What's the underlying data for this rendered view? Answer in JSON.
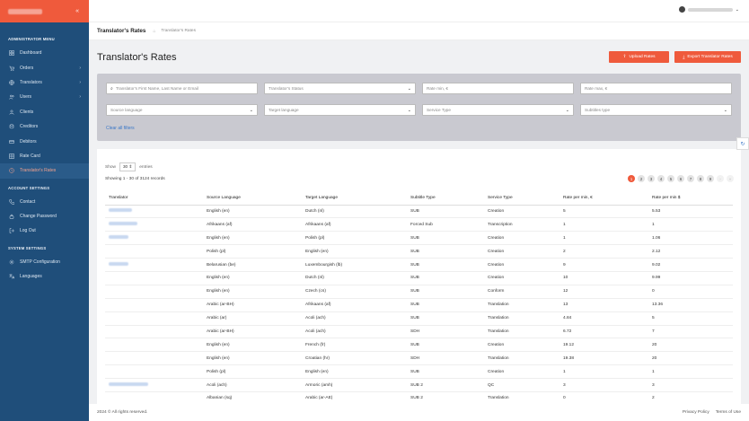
{
  "sidebar": {
    "sections": {
      "admin": "ADMINISTRATOR MENU",
      "account": "ACCOUNT SETTINGS",
      "system": "SYSTEM SETTINGS"
    },
    "admin_items": [
      {
        "label": "Dashboard",
        "icon": "dashboard-icon"
      },
      {
        "label": "Orders",
        "icon": "cart-icon",
        "caret": "›"
      },
      {
        "label": "Translators",
        "icon": "globe-icon",
        "caret": "›"
      },
      {
        "label": "Users",
        "icon": "users-icon",
        "caret": "›"
      },
      {
        "label": "Clients",
        "icon": "user-icon"
      },
      {
        "label": "Creditors",
        "icon": "coins-icon"
      },
      {
        "label": "Debitors",
        "icon": "card-icon"
      },
      {
        "label": "Rate Card",
        "icon": "grid-icon"
      },
      {
        "label": "Translator's Rates",
        "icon": "rate-icon",
        "active": true
      }
    ],
    "account_items": [
      {
        "label": "Contact",
        "icon": "phone-icon"
      },
      {
        "label": "Change Password",
        "icon": "lock-icon"
      },
      {
        "label": "Log Out",
        "icon": "logout-icon"
      }
    ],
    "system_items": [
      {
        "label": "SMTP Configuration",
        "icon": "gear-icon"
      },
      {
        "label": "Languages",
        "icon": "language-icon"
      }
    ]
  },
  "pagebar": {
    "title": "Translator's Rates",
    "breadcrumb": "Translator's Rates"
  },
  "main": {
    "title": "Translator's Rates",
    "upload_label": "Upload Rates",
    "export_label": "Export Translator Rates",
    "filters": {
      "search_placeholder": "Translator's First Name, Last Name or Email",
      "status": "Translator's Status",
      "rate_min": "Rate min, €",
      "rate_max": "Rate max, €",
      "source_language": "Source language",
      "target_language": "Target language",
      "service_type": "Service Type",
      "subtitles_type": "Subtitles type",
      "clear": "Clear all filters"
    },
    "show_label": "Show",
    "show_value": "30",
    "entries_label": "entries",
    "showing": "Showing 1 - 30 of 3124 records",
    "pages": [
      "1",
      "2",
      "3",
      "4",
      "5",
      "6",
      "7",
      "8",
      "9",
      "›",
      "»"
    ],
    "columns": [
      "Translator",
      "Source Language",
      "Target Language",
      "Subtitle Type",
      "Service Type",
      "Rate per min, €",
      "Rate per min $"
    ],
    "rows": [
      {
        "group": true,
        "blur": "w1",
        "src": "English (en)",
        "tgt": "Dutch (nl)",
        "sub": "SUB",
        "svc": "Creation",
        "eur": "5",
        "usd": "5.53"
      },
      {
        "group": true,
        "blur": "w2",
        "src": "Afrikaans (af)",
        "tgt": "Afrikaans (af)",
        "sub": "Forced Sub",
        "svc": "Transcription",
        "eur": "1",
        "usd": "1"
      },
      {
        "group": true,
        "blur": "w3",
        "src": "English (en)",
        "tgt": "Polish (pl)",
        "sub": "SUB",
        "svc": "Creation",
        "eur": "1",
        "usd": "1.06"
      },
      {
        "group": false,
        "blur": "",
        "src": "Polish (pl)",
        "tgt": "English (en)",
        "sub": "SUB",
        "svc": "Creation",
        "eur": "2",
        "usd": "2.12"
      },
      {
        "group": true,
        "blur": "w3",
        "src": "Belarusian (be)",
        "tgt": "Luxembourgish (lb)",
        "sub": "SUB",
        "svc": "Creation",
        "eur": "9",
        "usd": "9.02"
      },
      {
        "group": false,
        "blur": "",
        "src": "English (en)",
        "tgt": "Dutch (nl)",
        "sub": "SUB",
        "svc": "Creation",
        "eur": "10",
        "usd": "9.99"
      },
      {
        "group": false,
        "blur": "",
        "src": "English (en)",
        "tgt": "Czech (cs)",
        "sub": "SUB",
        "svc": "Conform",
        "eur": "12",
        "usd": "0"
      },
      {
        "group": false,
        "blur": "",
        "src": "Arabic (ar-BH)",
        "tgt": "Afrikaans (af)",
        "sub": "SUB",
        "svc": "Translation",
        "eur": "13",
        "usd": "13.36"
      },
      {
        "group": false,
        "blur": "",
        "src": "Arabic (ar)",
        "tgt": "Acoli (ach)",
        "sub": "SUB",
        "svc": "Translation",
        "eur": "4.84",
        "usd": "5"
      },
      {
        "group": false,
        "blur": "",
        "src": "Arabic (ar-BH)",
        "tgt": "Acoli (ach)",
        "sub": "SDH",
        "svc": "Translation",
        "eur": "6.72",
        "usd": "7"
      },
      {
        "group": false,
        "blur": "",
        "src": "English (en)",
        "tgt": "French (fr)",
        "sub": "SUB",
        "svc": "Creation",
        "eur": "19.12",
        "usd": "20"
      },
      {
        "group": false,
        "blur": "",
        "src": "English (en)",
        "tgt": "Croatian (hr)",
        "sub": "SDH",
        "svc": "Translation",
        "eur": "19.38",
        "usd": "20"
      },
      {
        "group": false,
        "blur": "",
        "src": "Polish (pl)",
        "tgt": "English (en)",
        "sub": "SUB",
        "svc": "Creation",
        "eur": "1",
        "usd": "1"
      },
      {
        "group": true,
        "blur": "w4",
        "src": "Acoli (ach)",
        "tgt": "Armoric (amh)",
        "sub": "SUB 2",
        "svc": "QC",
        "eur": "3",
        "usd": "3"
      },
      {
        "group": false,
        "blur": "",
        "src": "Albanian (sq)",
        "tgt": "Arabic (ar-AE)",
        "sub": "SUB 2",
        "svc": "Translation",
        "eur": "0",
        "usd": "2"
      }
    ]
  },
  "footer": {
    "copyright": "2024 © All rights reserved.",
    "privacy": "Privacy Policy",
    "terms": "Terms of Use"
  },
  "colors": {
    "accent": "#ef5a3c",
    "sidebar": "#1f4e7a",
    "link": "#3a77c8"
  }
}
